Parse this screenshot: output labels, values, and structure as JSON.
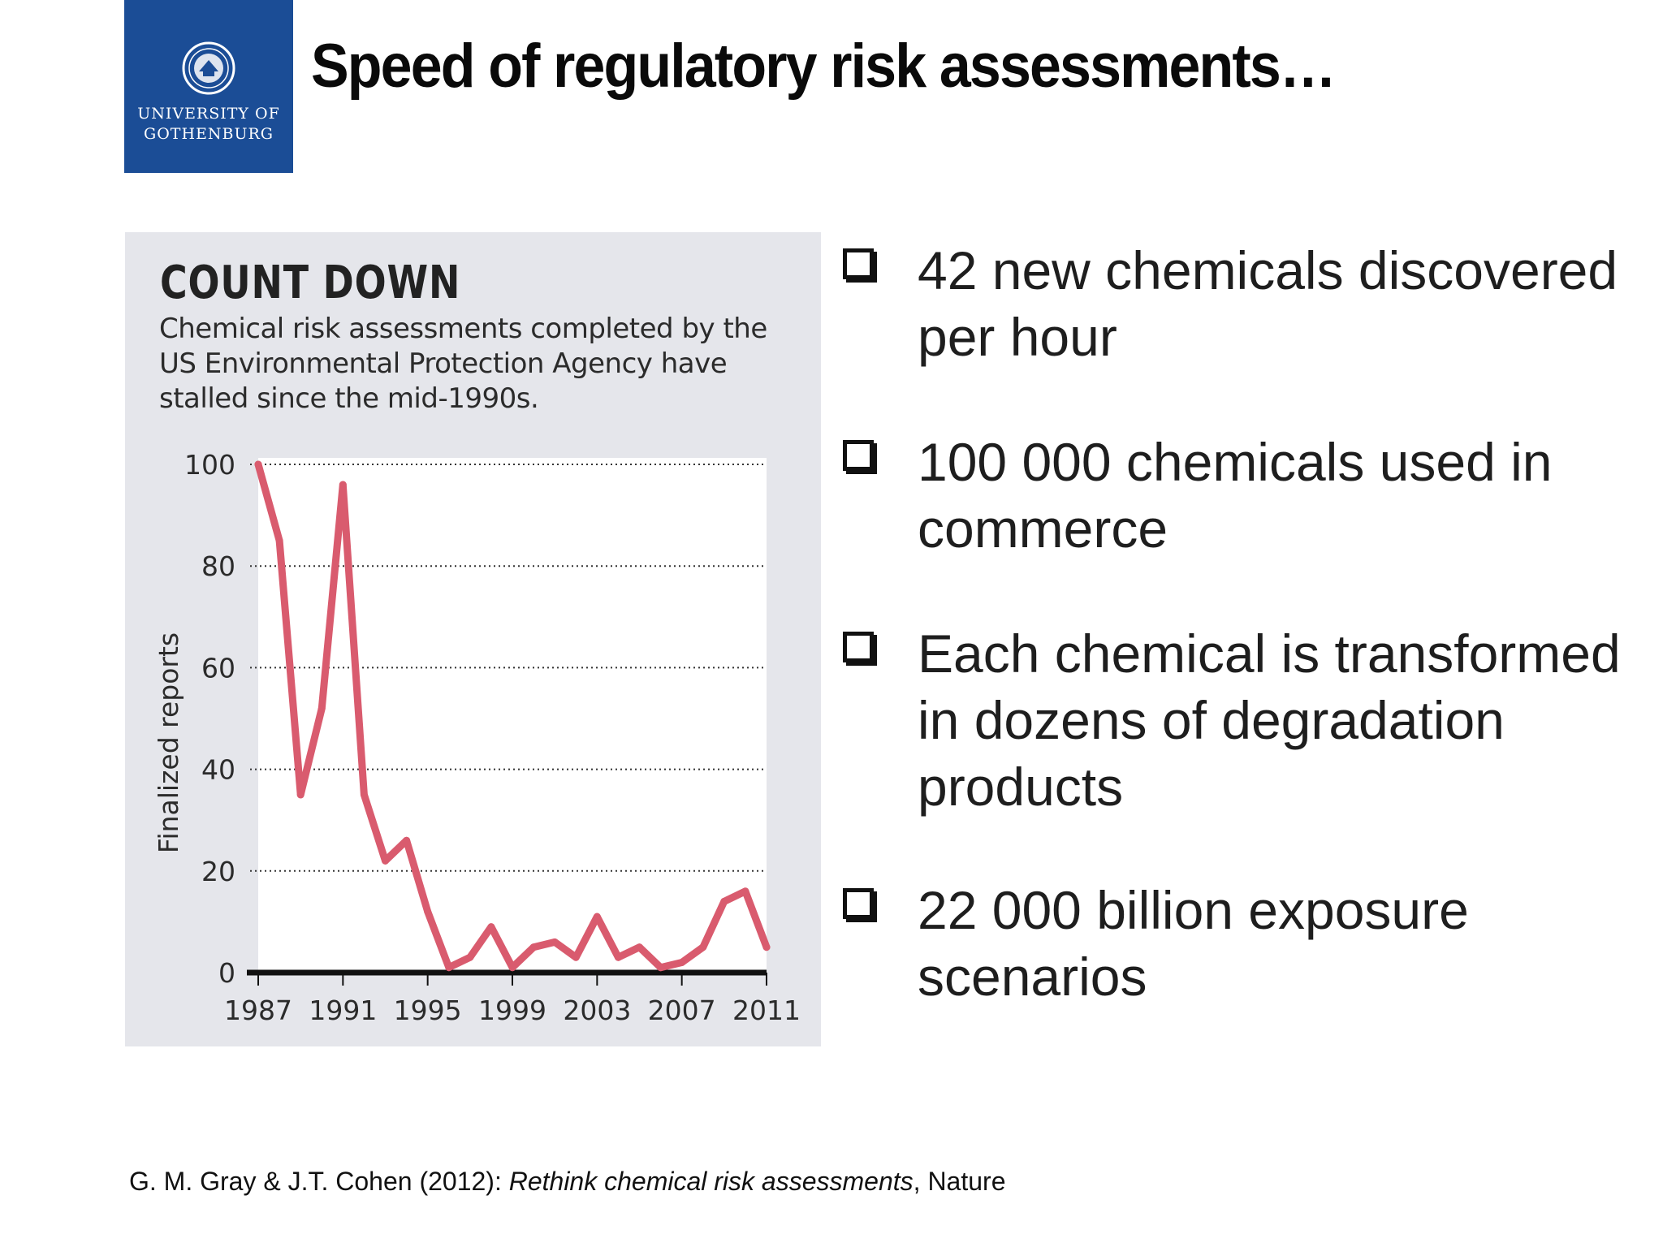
{
  "slide": {
    "title": "Speed of regulatory risk assessments…",
    "logo": {
      "line1": "UNIVERSITY OF",
      "line2": "GOTHENBURG"
    },
    "bullets": [
      "42 new chemicals discovered per hour",
      "100 000 chemicals used in commerce",
      "Each chemical is transformed in dozens of degradation products",
      "22 000 billion exposure scenarios"
    ],
    "citation": {
      "authors": "G. M. Gray & J.T. Cohen (2012): ",
      "work": "Rethink chemical risk assessments",
      "source": ", Nature"
    }
  },
  "chart_data": {
    "type": "line",
    "title": "COUNT DOWN",
    "subtitle": "Chemical risk assessments completed by the US Environmental Protection Agency have stalled since the mid-1990s.",
    "xlabel": "",
    "ylabel": "Finalized reports",
    "xlim": [
      1987,
      2011
    ],
    "ylim": [
      0,
      100
    ],
    "xticks": [
      "1987",
      "1991",
      "1995",
      "1999",
      "2003",
      "2007",
      "2011"
    ],
    "yticks": [
      "0",
      "20",
      "40",
      "60",
      "80",
      "100"
    ],
    "grid": "horizontal dotted",
    "line_color": "#d95b6e",
    "x": [
      1987,
      1988,
      1989,
      1990,
      1991,
      1992,
      1993,
      1994,
      1995,
      1996,
      1997,
      1998,
      1999,
      2000,
      2001,
      2002,
      2003,
      2004,
      2005,
      2006,
      2007,
      2008,
      2009,
      2010,
      2011
    ],
    "y": [
      100,
      85,
      35,
      52,
      96,
      35,
      22,
      26,
      12,
      1,
      3,
      9,
      1,
      5,
      6,
      3,
      11,
      3,
      5,
      1,
      2,
      5,
      14,
      16,
      5
    ]
  }
}
